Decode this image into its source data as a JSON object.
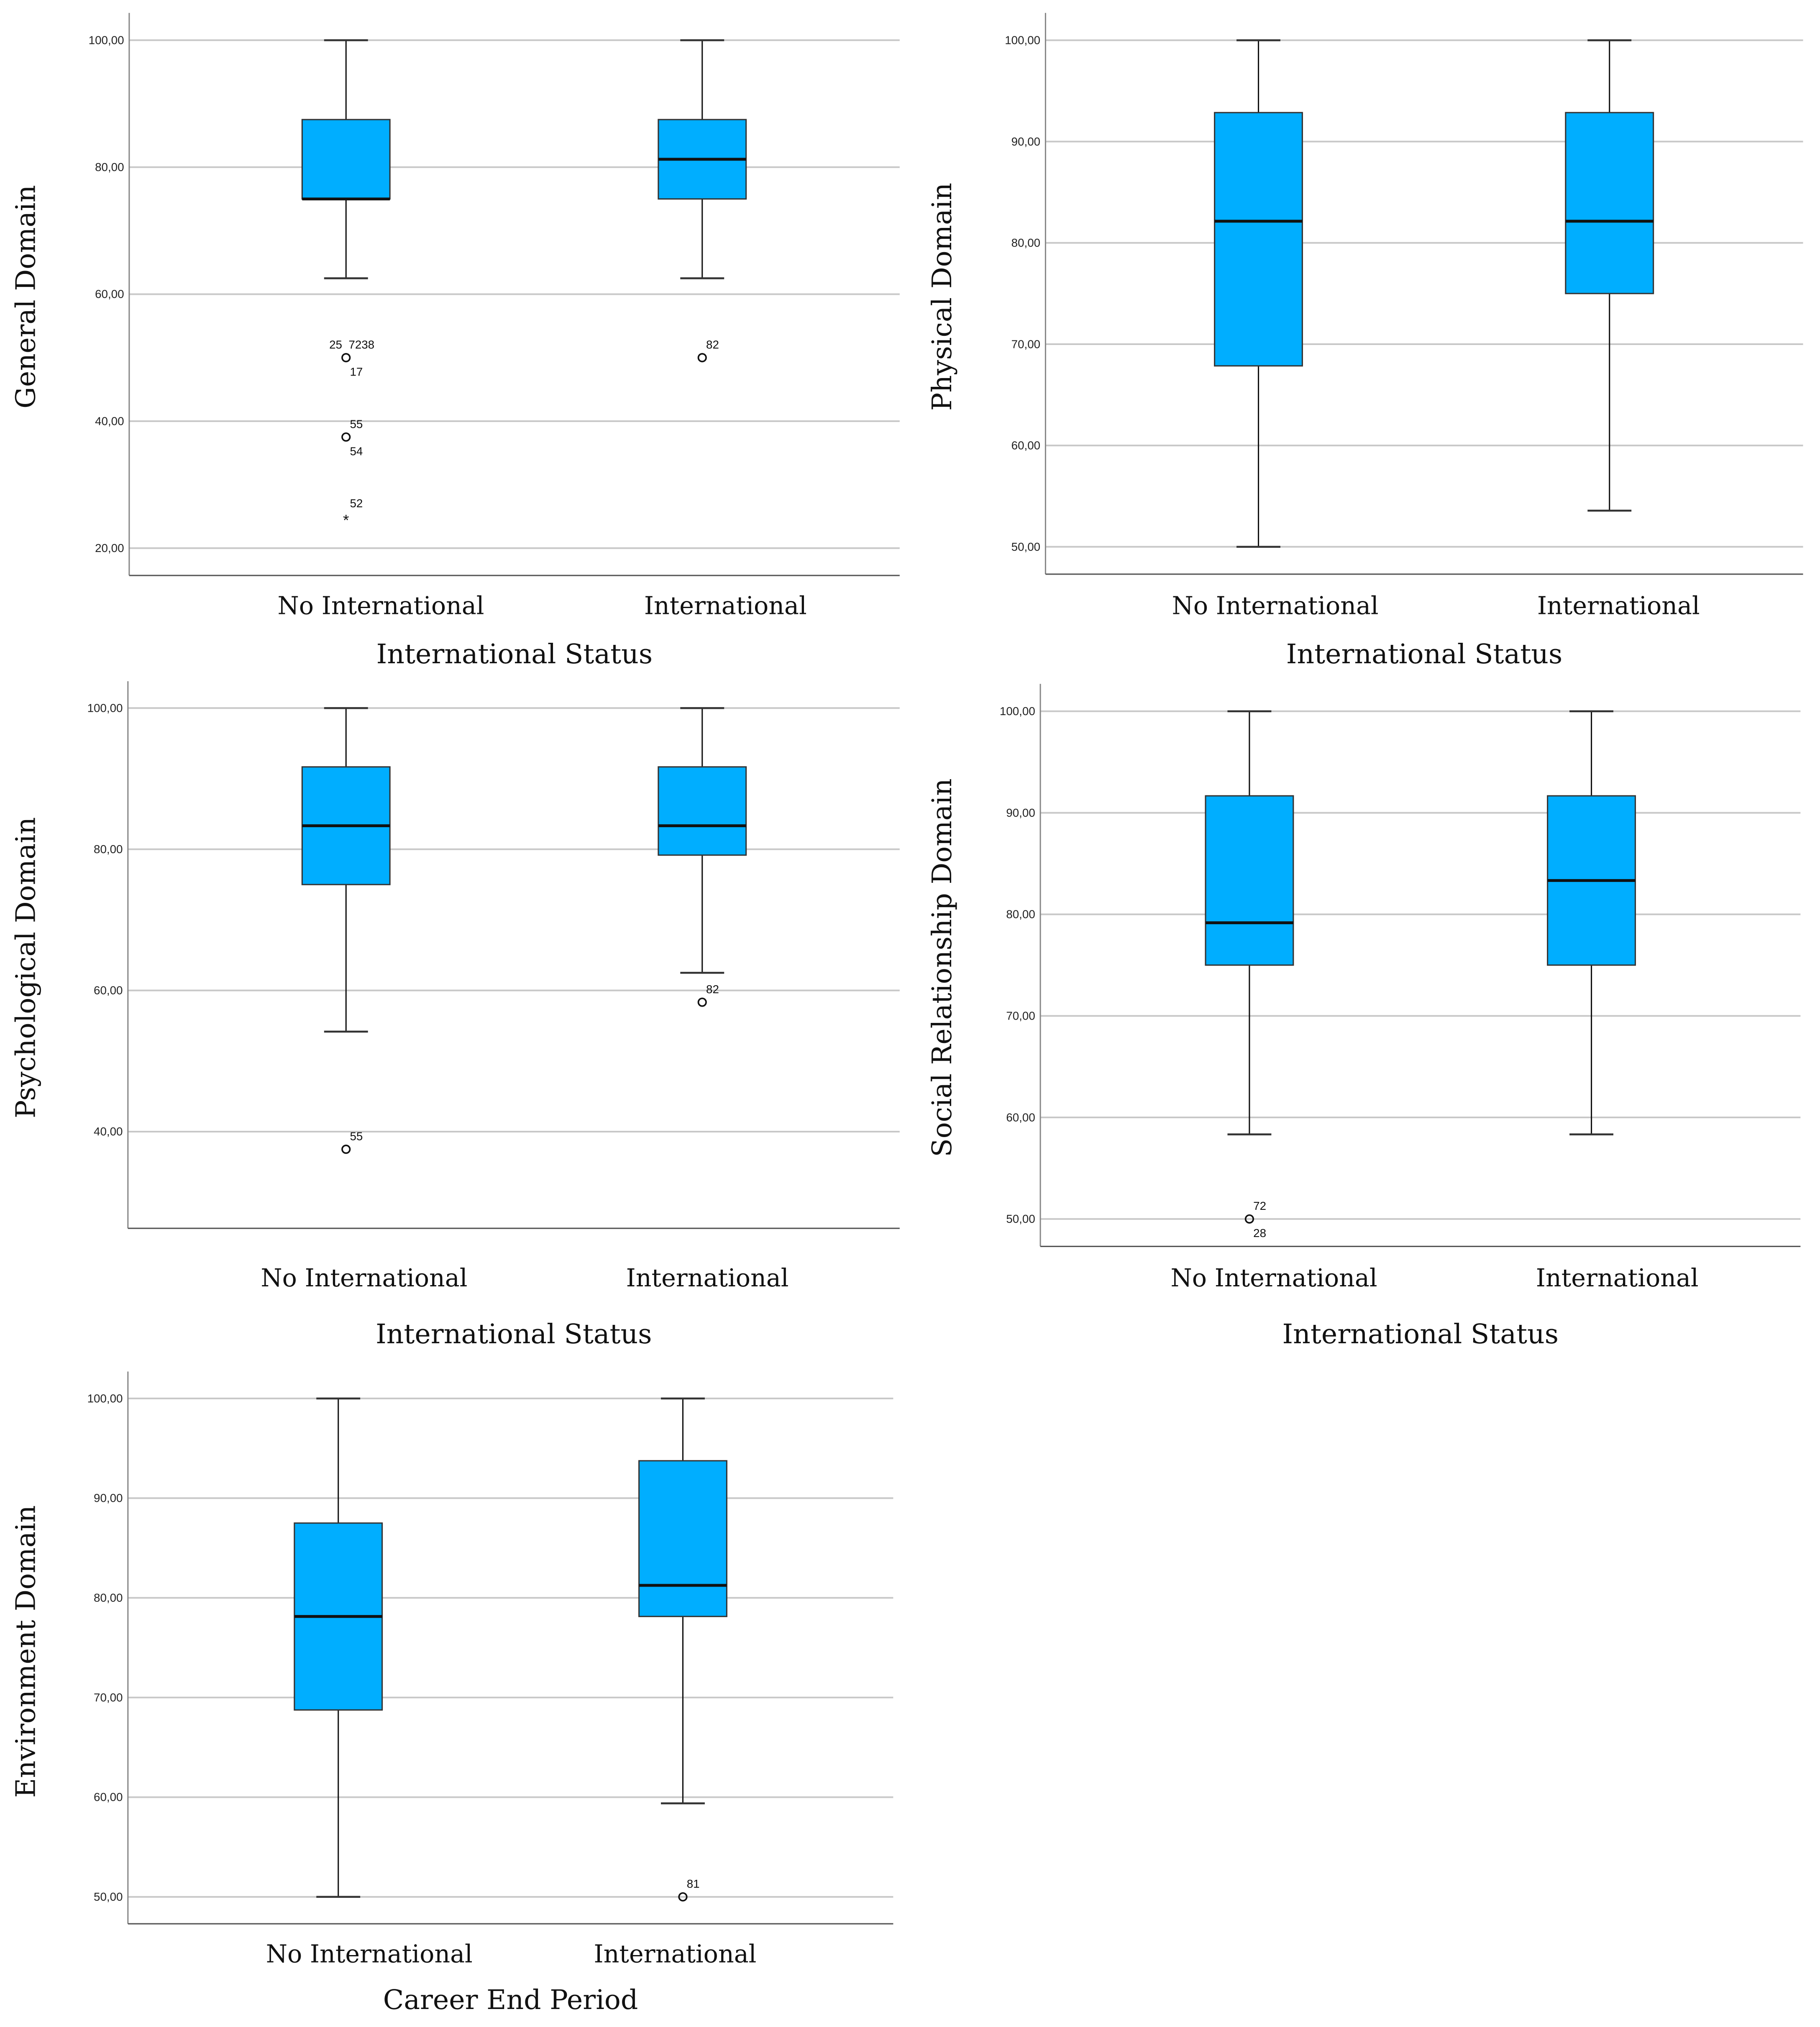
{
  "colors": {
    "box_fill": "#00AEFF",
    "box_stroke": "#333333",
    "grid": "#c8c8c8",
    "axis": "#888888"
  },
  "chart_data": [
    {
      "type": "boxplot",
      "title": "",
      "xlabel": "International Status",
      "ylabel": "General Domain",
      "ylim": [
        15.7,
        104.3
      ],
      "yticks": [
        20,
        40,
        60,
        80,
        100
      ],
      "ytick_labels": [
        "20,00",
        "40,00",
        "60,00",
        "80,00",
        "100,00"
      ],
      "categories": [
        "No International",
        "International"
      ],
      "boxes": [
        {
          "whisker_low": 62.5,
          "q1": 75,
          "median": 75,
          "q3": 87.5,
          "whisker_high": 100,
          "outliers": [
            {
              "value": 50,
              "marker": "circle",
              "labels_above": [
                "25",
                "7238"
              ],
              "labels_below": [
                "17"
              ]
            },
            {
              "value": 37.5,
              "marker": "circle",
              "labels_above": [
                "55"
              ],
              "labels_below": [
                "54"
              ]
            },
            {
              "value": 25,
              "marker": "star",
              "labels_above": [
                "52"
              ],
              "labels_below": []
            }
          ]
        },
        {
          "whisker_low": 62.5,
          "q1": 75,
          "median": 81.25,
          "q3": 87.5,
          "whisker_high": 100,
          "outliers": [
            {
              "value": 50,
              "marker": "circle",
              "labels_above": [
                "82"
              ],
              "labels_below": []
            }
          ]
        }
      ]
    },
    {
      "type": "boxplot",
      "title": "",
      "xlabel": "International Status",
      "ylabel": "Physical Domain",
      "ylim": [
        47.3,
        102.7
      ],
      "yticks": [
        50,
        60,
        70,
        80,
        90,
        100
      ],
      "ytick_labels": [
        "50,00",
        "60,00",
        "70,00",
        "80,00",
        "90,00",
        "100,00"
      ],
      "categories": [
        "No International",
        "International"
      ],
      "boxes": [
        {
          "whisker_low": 50,
          "q1": 67.86,
          "median": 82.14,
          "q3": 92.86,
          "whisker_high": 100,
          "outliers": []
        },
        {
          "whisker_low": 53.57,
          "q1": 75,
          "median": 82.14,
          "q3": 92.86,
          "whisker_high": 100,
          "outliers": []
        }
      ]
    },
    {
      "type": "boxplot",
      "title": "",
      "xlabel": "International Status",
      "ylabel": "Psychological Domain",
      "ylim": [
        26.3,
        103.8
      ],
      "yticks": [
        40,
        60,
        80,
        100
      ],
      "ytick_labels": [
        "40,00",
        "60,00",
        "80,00",
        "100,00"
      ],
      "categories": [
        "No International",
        "International"
      ],
      "boxes": [
        {
          "whisker_low": 54.17,
          "q1": 75,
          "median": 83.33,
          "q3": 91.67,
          "whisker_high": 100,
          "outliers": [
            {
              "value": 37.5,
              "marker": "circle",
              "labels_above": [
                "55"
              ],
              "labels_below": []
            }
          ]
        },
        {
          "whisker_low": 62.5,
          "q1": 79.17,
          "median": 83.33,
          "q3": 91.67,
          "whisker_high": 100,
          "outliers": [
            {
              "value": 58.33,
              "marker": "circle",
              "labels_above": [
                "82"
              ],
              "labels_below": []
            }
          ]
        }
      ]
    },
    {
      "type": "boxplot",
      "title": "",
      "xlabel": "International Status",
      "ylabel": "Social Relationship Domain",
      "ylim": [
        47.3,
        102.7
      ],
      "yticks": [
        50,
        60,
        70,
        80,
        90,
        100
      ],
      "ytick_labels": [
        "50,00",
        "60,00",
        "70,00",
        "80,00",
        "90,00",
        "100,00"
      ],
      "categories": [
        "No International",
        "International"
      ],
      "boxes": [
        {
          "whisker_low": 58.33,
          "q1": 75,
          "median": 79.17,
          "q3": 91.67,
          "whisker_high": 100,
          "outliers": [
            {
              "value": 50,
              "marker": "circle",
              "labels_above": [
                "72"
              ],
              "labels_below": [
                "28"
              ]
            }
          ]
        },
        {
          "whisker_low": 58.33,
          "q1": 75,
          "median": 83.33,
          "q3": 91.67,
          "whisker_high": 100,
          "outliers": []
        }
      ]
    },
    {
      "type": "boxplot",
      "title": "",
      "xlabel": "Career End Period",
      "ylabel": "Environment Domain",
      "ylim": [
        47.3,
        102.7
      ],
      "yticks": [
        50,
        60,
        70,
        80,
        90,
        100
      ],
      "ytick_labels": [
        "50,00",
        "60,00",
        "70,00",
        "80,00",
        "90,00",
        "100,00"
      ],
      "categories": [
        "No International",
        "International"
      ],
      "boxes": [
        {
          "whisker_low": 50,
          "q1": 68.75,
          "median": 78.13,
          "q3": 87.5,
          "whisker_high": 100,
          "outliers": []
        },
        {
          "whisker_low": 59.38,
          "q1": 78.13,
          "median": 81.25,
          "q3": 93.75,
          "whisker_high": 100,
          "outliers": [
            {
              "value": 50,
              "marker": "circle",
              "labels_above": [
                "81"
              ],
              "labels_below": []
            }
          ]
        }
      ]
    }
  ]
}
